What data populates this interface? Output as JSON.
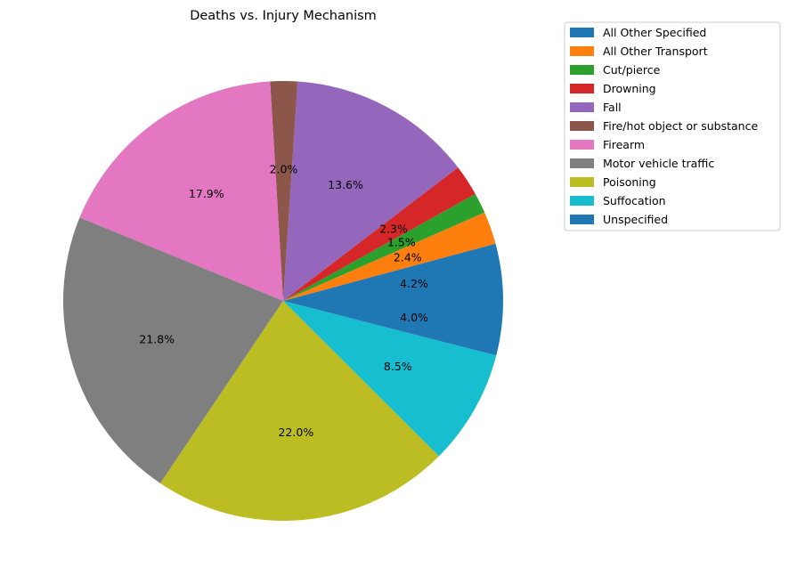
{
  "chart_data": {
    "type": "pie",
    "title": "Deaths vs. Injury Mechanism",
    "legend_position": "top-right",
    "slices": [
      {
        "label": "All Other Specified",
        "value": 4.2,
        "display": "4.2%",
        "color": "#1f77b4"
      },
      {
        "label": "All Other Transport",
        "value": 2.4,
        "display": "2.4%",
        "color": "#ff7f0e"
      },
      {
        "label": "Cut/pierce",
        "value": 1.5,
        "display": "1.5%",
        "color": "#2ca02c"
      },
      {
        "label": "Drowning",
        "value": 2.3,
        "display": "2.3%",
        "color": "#d62728"
      },
      {
        "label": "Fall",
        "value": 13.6,
        "display": "13.6%",
        "color": "#9467bd"
      },
      {
        "label": "Fire/hot object or substance",
        "value": 2.0,
        "display": "2.0%",
        "color": "#8c564b"
      },
      {
        "label": "Firearm",
        "value": 17.9,
        "display": "17.9%",
        "color": "#e377c2"
      },
      {
        "label": "Motor vehicle traffic",
        "value": 21.8,
        "display": "21.8%",
        "color": "#7f7f7f"
      },
      {
        "label": "Poisoning",
        "value": 22.0,
        "display": "22.0%",
        "color": "#bcbd22"
      },
      {
        "label": "Suffocation",
        "value": 8.5,
        "display": "8.5%",
        "color": "#17becf"
      },
      {
        "label": "Unspecified",
        "value": 4.0,
        "display": "4.0%",
        "color": "#1f77b4"
      }
    ]
  }
}
